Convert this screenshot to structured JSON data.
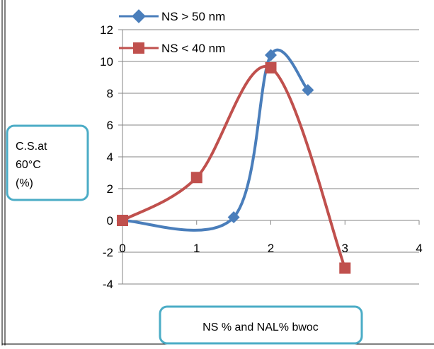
{
  "chart_data": {
    "type": "line",
    "ylabel": "C.S.at\n60°C\n(%)",
    "xlabel": "NS % and NAL% bwoc",
    "xlim": [
      0,
      4
    ],
    "ylim": [
      -4,
      12
    ],
    "x_ticks": [
      0,
      1,
      2,
      3,
      4
    ],
    "y_ticks": [
      12,
      10,
      8,
      6,
      4,
      2,
      0,
      -2,
      -4
    ],
    "grid": "horizontal",
    "legend_position": "top",
    "smoothed": true,
    "series": [
      {
        "name": "NS > 50 nm",
        "color": "#4a7ebb",
        "marker": "diamond",
        "x": [
          0,
          1.5,
          2,
          2.5
        ],
        "y": [
          0,
          0.2,
          10.4,
          8.2
        ]
      },
      {
        "name": "NS < 40 nm",
        "color": "#c0504d",
        "marker": "square",
        "x": [
          0,
          1,
          2,
          3
        ],
        "y": [
          0,
          2.7,
          9.6,
          -3
        ]
      }
    ]
  },
  "colors": {
    "callout_border": "#4bacc6",
    "gridline": "#868686",
    "axis": "#868686"
  }
}
